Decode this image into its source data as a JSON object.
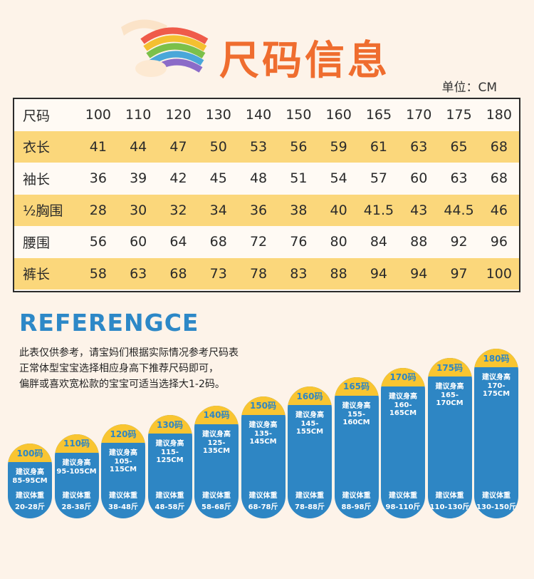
{
  "header": {
    "title": "尺码信息"
  },
  "unit": "单位：CM",
  "table": {
    "header_label": "尺码",
    "sizes": [
      "100",
      "110",
      "120",
      "130",
      "140",
      "150",
      "160",
      "165",
      "170",
      "175",
      "180"
    ],
    "rows": [
      {
        "label": "衣长",
        "values": [
          "41",
          "44",
          "47",
          "50",
          "53",
          "56",
          "59",
          "61",
          "63",
          "65",
          "68"
        ],
        "shaded": true
      },
      {
        "label": "袖长",
        "values": [
          "36",
          "39",
          "42",
          "45",
          "48",
          "51",
          "54",
          "57",
          "60",
          "63",
          "68"
        ],
        "shaded": false
      },
      {
        "label": "½胸围",
        "values": [
          "28",
          "30",
          "32",
          "34",
          "36",
          "38",
          "40",
          "41.5",
          "43",
          "44.5",
          "46"
        ],
        "shaded": true
      },
      {
        "label": "腰围",
        "values": [
          "56",
          "60",
          "64",
          "68",
          "72",
          "76",
          "80",
          "84",
          "88",
          "92",
          "96"
        ],
        "shaded": false
      },
      {
        "label": "裤长",
        "values": [
          "58",
          "63",
          "68",
          "73",
          "78",
          "83",
          "88",
          "94",
          "94",
          "97",
          "100"
        ],
        "shaded": true
      }
    ]
  },
  "reference": {
    "title": "REFERENGCE",
    "lines": [
      "此表仅供参考，请宝妈们根据实际情况参考尺码表",
      "正常体型宝宝选择相应身高下推荐尺码即可，",
      "偏胖或喜欢宽松款的宝宝可适当选择大1-2码。"
    ]
  },
  "cards": {
    "height_label": "建议身高",
    "weight_label": "建议体重",
    "items": [
      {
        "size": "100码",
        "height": "85-95CM",
        "weight": "20-28斤"
      },
      {
        "size": "110码",
        "height": "95-105CM",
        "weight": "28-38斤"
      },
      {
        "size": "120码",
        "height": "105-115CM",
        "weight": "38-48斤"
      },
      {
        "size": "130码",
        "height": "115-125CM",
        "weight": "48-58斤"
      },
      {
        "size": "140码",
        "height": "125-135CM",
        "weight": "58-68斤"
      },
      {
        "size": "150码",
        "height": "135-145CM",
        "weight": "68-78斤"
      },
      {
        "size": "160码",
        "height": "145-155CM",
        "weight": "78-88斤"
      },
      {
        "size": "165码",
        "height": "155-160CM",
        "weight": "88-98斤"
      },
      {
        "size": "170码",
        "height": "160-165CM",
        "weight": "98-110斤"
      },
      {
        "size": "175码",
        "height": "165-170CM",
        "weight": "110-130斤"
      },
      {
        "size": "180码",
        "height": "170-175CM",
        "weight": "130-150斤"
      }
    ]
  },
  "colors": {
    "accent": "#ef6d2f",
    "blue": "#2e86c4",
    "yellow": "#f9c531",
    "row_shade": "#fbd77b",
    "background": "#fdf3e9"
  }
}
